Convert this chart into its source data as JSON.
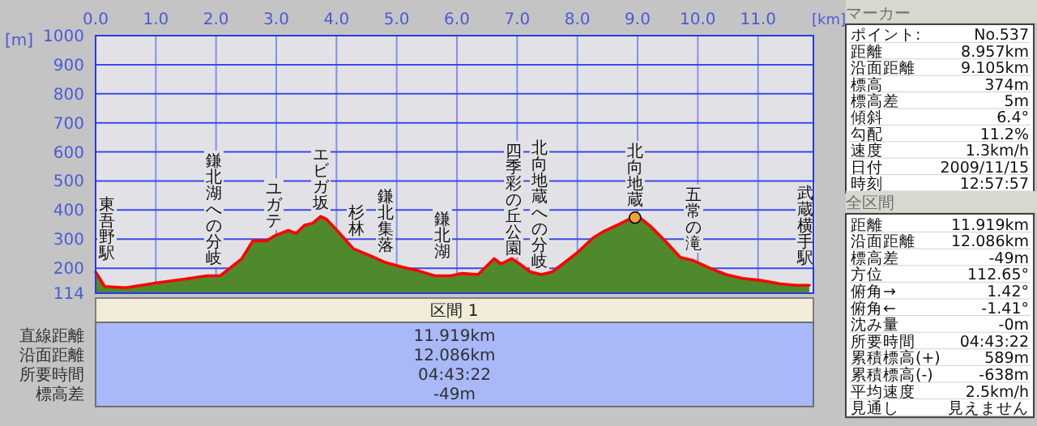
{
  "chart_data": [
    {
      "type": "area",
      "xlabel": "[km]",
      "ylabel": "[m]",
      "xlim": [
        0,
        11.919
      ],
      "ylim": [
        114,
        1000
      ],
      "xticks": [
        {
          "value": 0,
          "label": "0.0"
        },
        {
          "value": 1,
          "label": "1.0"
        },
        {
          "value": 2,
          "label": "2.0"
        },
        {
          "value": 3,
          "label": "3.0"
        },
        {
          "value": 4,
          "label": "4.0"
        },
        {
          "value": 5,
          "label": "5.0"
        },
        {
          "value": 6,
          "label": "6.0"
        },
        {
          "value": 7,
          "label": "7.0"
        },
        {
          "value": 8,
          "label": "8.0"
        },
        {
          "value": 9,
          "label": "9.0"
        },
        {
          "value": 10,
          "label": "10.0"
        },
        {
          "value": 11,
          "label": "11.0"
        }
      ],
      "yticks": [
        114,
        200,
        300,
        400,
        500,
        600,
        700,
        800,
        900,
        1000
      ],
      "grid": true,
      "x": [
        0,
        0.15,
        0.5,
        1.04,
        1.49,
        1.85,
        2.07,
        2.43,
        2.61,
        2.84,
        2.97,
        3.2,
        3.33,
        3.47,
        3.6,
        3.74,
        3.83,
        4.01,
        4.28,
        4.55,
        4.82,
        5.09,
        5.36,
        5.63,
        5.9,
        6.08,
        6.35,
        6.62,
        6.73,
        6.91,
        7.04,
        7.22,
        7.4,
        7.58,
        7.76,
        7.99,
        8.26,
        8.44,
        8.67,
        8.9,
        8.99,
        9.21,
        9.48,
        9.71,
        9.93,
        10.2,
        10.47,
        10.74,
        11.01,
        11.37,
        11.64,
        11.85
      ],
      "series": [
        {
          "type": "area",
          "color": "#4e8a2c",
          "values": [
            187,
            137,
            133,
            150,
            163,
            174,
            174,
            233,
            294,
            294,
            311,
            330,
            320,
            348,
            354,
            378,
            369,
            330,
            267,
            244,
            219,
            204,
            191,
            174,
            174,
            182,
            178,
            233,
            215,
            233,
            215,
            187,
            178,
            187,
            215,
            252,
            304,
            327,
            349,
            373,
            382,
            345,
            289,
            237,
            226,
            200,
            178,
            165,
            159,
            146,
            141,
            141
          ]
        },
        {
          "type": "line",
          "color": "#ff0000",
          "values": [
            187,
            137,
            133,
            150,
            163,
            174,
            174,
            233,
            294,
            294,
            311,
            330,
            320,
            348,
            354,
            378,
            369,
            330,
            267,
            244,
            219,
            204,
            191,
            174,
            174,
            182,
            178,
            233,
            215,
            233,
            215,
            187,
            178,
            187,
            215,
            252,
            304,
            327,
            349,
            373,
            382,
            345,
            289,
            237,
            226,
            200,
            178,
            165,
            159,
            146,
            141,
            141
          ]
        },
        {
          "type": "scatter",
          "color": "#f0a030",
          "x": [
            8.957
          ],
          "values": [
            374
          ]
        }
      ],
      "annotations": [
        "東吾野駅",
        "鎌北湖への分岐",
        "ユガテ",
        "エビガ坂",
        "杉林",
        "鎌北集落",
        "鎌北湖",
        "四季彩の丘公園",
        "北向地蔵への分岐",
        "北向地蔵",
        "五常の滝",
        "武蔵横手駅"
      ]
    },
    {
      "type": "other",
      "title": "区間 1",
      "annotations": [
        "直線距離",
        "11.919km",
        "沿面距離",
        "12.086km",
        "所要時間",
        "04:43:22",
        "標高差",
        "-49m"
      ]
    },
    {
      "type": "other",
      "title": "マーカー",
      "annotations": [
        "ポイント:",
        "No.537",
        "距離",
        "8.957km",
        "沿面距離",
        "9.105km",
        "標高",
        "374m",
        "標高差",
        "5m",
        "傾斜",
        "6.4°",
        "勾配",
        "11.2%",
        "速度",
        "1.3km/h",
        "日付",
        "2009/11/15",
        "時刻",
        "12:57:57"
      ]
    },
    {
      "type": "other",
      "title": "全区間",
      "annotations": [
        "距離",
        "11.919km",
        "沿面距離",
        "12.086km",
        "標高差",
        "-49m",
        "方位",
        "112.65°",
        "俯角→",
        "1.42°",
        "俯角←",
        "-1.41°",
        "沈み量",
        "-0m",
        "所要時間",
        "04:43:22",
        "累積標高(+)",
        "589m",
        "累積標高(-)",
        "-638m",
        "平均速度",
        "2.5km/h",
        "見通し",
        "見えません"
      ]
    }
  ]
}
